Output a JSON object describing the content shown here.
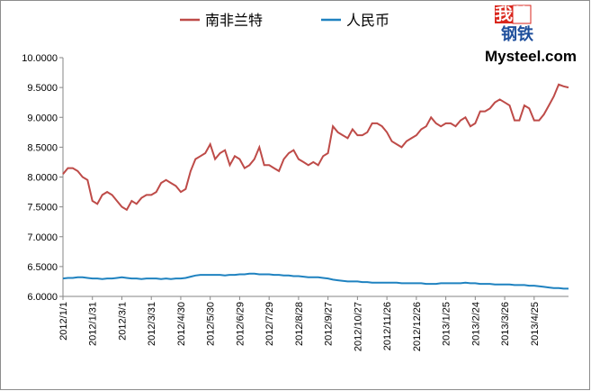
{
  "chart_data": {
    "type": "line",
    "logo": {
      "top": "我的",
      "bottom": "钢铁",
      "brand": "Mysteel.com"
    },
    "categories": [
      "2012/1/1",
      null,
      null,
      null,
      null,
      null,
      "2012/1/31",
      null,
      null,
      null,
      null,
      null,
      "2012/3/1",
      null,
      null,
      null,
      null,
      null,
      "2012/3/31",
      null,
      null,
      null,
      null,
      null,
      "2012/4/30",
      null,
      null,
      null,
      null,
      null,
      "2012/5/30",
      null,
      null,
      null,
      null,
      null,
      "2012/6/29",
      null,
      null,
      null,
      null,
      null,
      "2012/7/29",
      null,
      null,
      null,
      null,
      null,
      "2012/8/28",
      null,
      null,
      null,
      null,
      null,
      "2012/9/27",
      null,
      null,
      null,
      null,
      null,
      "2012/10/27",
      null,
      null,
      null,
      null,
      null,
      "2012/11/26",
      null,
      null,
      null,
      null,
      null,
      "2012/12/26",
      null,
      null,
      null,
      null,
      null,
      "2013/1/25",
      null,
      null,
      null,
      null,
      null,
      "2013/2/24",
      null,
      null,
      null,
      null,
      null,
      "2013/3/26",
      null,
      null,
      null,
      null,
      null,
      "2013/4/25",
      null,
      null,
      null,
      null,
      null,
      null,
      null
    ],
    "series": [
      {
        "name": "南非兰特",
        "color": "#be4b48",
        "values": [
          8.05,
          8.15,
          8.15,
          8.1,
          8.0,
          7.95,
          7.6,
          7.55,
          7.7,
          7.75,
          7.7,
          7.6,
          7.5,
          7.45,
          7.6,
          7.55,
          7.65,
          7.7,
          7.7,
          7.75,
          7.9,
          7.95,
          7.9,
          7.85,
          7.75,
          7.8,
          8.1,
          8.3,
          8.35,
          8.4,
          8.55,
          8.3,
          8.4,
          8.45,
          8.2,
          8.35,
          8.3,
          8.15,
          8.2,
          8.3,
          8.5,
          8.2,
          8.2,
          8.15,
          8.1,
          8.3,
          8.4,
          8.45,
          8.3,
          8.25,
          8.2,
          8.25,
          8.2,
          8.35,
          8.4,
          8.85,
          8.75,
          8.7,
          8.65,
          8.8,
          8.7,
          8.7,
          8.75,
          8.9,
          8.9,
          8.85,
          8.75,
          8.6,
          8.55,
          8.5,
          8.6,
          8.65,
          8.7,
          8.8,
          8.85,
          9.0,
          8.9,
          8.85,
          8.9,
          8.9,
          8.85,
          8.95,
          9.0,
          8.85,
          8.9,
          9.1,
          9.1,
          9.15,
          9.25,
          9.3,
          9.25,
          9.2,
          8.95,
          8.95,
          9.2,
          9.15,
          8.95,
          8.95,
          9.05,
          9.2,
          9.35,
          9.55,
          9.52,
          9.5
        ]
      },
      {
        "name": "人民币",
        "color": "#1f82c0",
        "values": [
          6.3,
          6.31,
          6.31,
          6.32,
          6.32,
          6.31,
          6.3,
          6.3,
          6.29,
          6.3,
          6.3,
          6.31,
          6.32,
          6.31,
          6.3,
          6.3,
          6.29,
          6.3,
          6.3,
          6.3,
          6.29,
          6.3,
          6.29,
          6.3,
          6.3,
          6.31,
          6.33,
          6.35,
          6.36,
          6.36,
          6.36,
          6.36,
          6.36,
          6.35,
          6.36,
          6.36,
          6.37,
          6.37,
          6.38,
          6.38,
          6.37,
          6.37,
          6.37,
          6.36,
          6.36,
          6.35,
          6.35,
          6.34,
          6.34,
          6.33,
          6.32,
          6.32,
          6.32,
          6.31,
          6.3,
          6.28,
          6.27,
          6.26,
          6.25,
          6.25,
          6.25,
          6.24,
          6.24,
          6.23,
          6.23,
          6.23,
          6.23,
          6.23,
          6.23,
          6.22,
          6.22,
          6.22,
          6.22,
          6.22,
          6.21,
          6.21,
          6.21,
          6.22,
          6.22,
          6.22,
          6.22,
          6.22,
          6.23,
          6.22,
          6.22,
          6.21,
          6.21,
          6.21,
          6.2,
          6.2,
          6.2,
          6.2,
          6.19,
          6.19,
          6.19,
          6.18,
          6.18,
          6.17,
          6.16,
          6.15,
          6.14,
          6.14,
          6.13,
          6.13
        ]
      }
    ],
    "ylim": [
      6,
      10
    ],
    "yticks": [
      {
        "value": 6,
        "label": "6.0000"
      },
      {
        "value": 6.5,
        "label": "6.5000"
      },
      {
        "value": 7,
        "label": "7.0000"
      },
      {
        "value": 7.5,
        "label": "7.5000"
      },
      {
        "value": 8,
        "label": "8.0000"
      },
      {
        "value": 8.5,
        "label": "8.5000"
      },
      {
        "value": 9,
        "label": "9.0000"
      },
      {
        "value": 9.5,
        "label": "9.5000"
      },
      {
        "value": 10,
        "label": "10.0000"
      }
    ],
    "grid": false,
    "legend": "top"
  }
}
